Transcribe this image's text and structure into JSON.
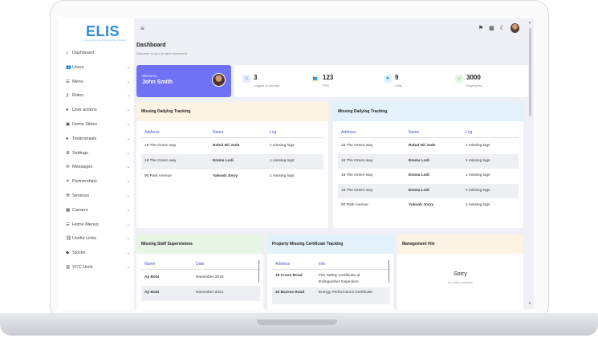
{
  "app": {
    "logo": "ELIS",
    "logo_sub": "Emergency Lighting Inspection System"
  },
  "sidebar": {
    "items": [
      {
        "label": "Dashboard",
        "icon": "home-icon",
        "glyph": "⌂",
        "chev": ""
      },
      {
        "label": "Users",
        "icon": "users-icon",
        "glyph": "👥",
        "chev": "⌄"
      },
      {
        "label": "Menu",
        "icon": "menu-icon",
        "glyph": "☰",
        "chev": "⌄"
      },
      {
        "label": "Roles",
        "icon": "key-icon",
        "glyph": "⚷",
        "chev": "⌄"
      },
      {
        "label": "User actions",
        "icon": "user-icon",
        "glyph": "●",
        "chev": "⌄"
      },
      {
        "label": "Home Slides",
        "icon": "image-icon",
        "glyph": "▣",
        "chev": "⌄"
      },
      {
        "label": "Testimonials",
        "icon": "comment-icon",
        "glyph": "●",
        "chev": "⌄"
      },
      {
        "label": "Settings",
        "icon": "gear-icon",
        "glyph": "⚙",
        "chev": "⌄"
      },
      {
        "label": "Messages",
        "icon": "envelope-icon",
        "glyph": "✉",
        "chev": "⌄"
      },
      {
        "label": "Partnerships",
        "icon": "handshake-icon",
        "glyph": "✶",
        "chev": "⌄"
      },
      {
        "label": "Services",
        "icon": "tools-icon",
        "glyph": "⚒",
        "chev": "⌄"
      },
      {
        "label": "Careers",
        "icon": "building-icon",
        "glyph": "▦",
        "chev": "⌄"
      },
      {
        "label": "Home Menus",
        "icon": "list-icon",
        "glyph": "☰",
        "chev": "⌄"
      },
      {
        "label": "Useful Links",
        "icon": "link-icon",
        "glyph": "⛓",
        "chev": "⌄"
      },
      {
        "label": "Stocks",
        "icon": "cube-icon",
        "glyph": "◆",
        "chev": "⌄"
      },
      {
        "label": "YCC Units",
        "icon": "units-icon",
        "glyph": "▥",
        "chev": "⌄"
      }
    ]
  },
  "topbar": {
    "hamburger": "≡",
    "icons": [
      "flag-icon",
      "grid-icon",
      "moon-icon"
    ]
  },
  "page": {
    "title": "Dashboard",
    "subtitle": "Welcome to your project dashboard"
  },
  "welcome": {
    "greeting": "Welcome,",
    "name": "John Smith"
  },
  "stats": [
    {
      "value": "3",
      "label": "Logged in devices",
      "icon": "monitor-icon",
      "glyph": "▭",
      "color": "#4a6cf7",
      "bg": "#e6ebff"
    },
    {
      "value": "123",
      "label": "FPS",
      "icon": "users-icon",
      "glyph": "👥",
      "color": "#e0a21b",
      "bg": "#fff3dc"
    },
    {
      "value": "9",
      "label": "Units",
      "icon": "star-icon",
      "glyph": "✱",
      "color": "#2aa4d8",
      "bg": "#dff2fb"
    },
    {
      "value": "3000",
      "label": "Employees",
      "icon": "smile-icon",
      "glyph": "☺",
      "color": "#3bb54a",
      "bg": "#e3f6e5"
    }
  ],
  "card1": {
    "title": "Missing Dailylog Tracking",
    "header_bg": "#fdf3e2",
    "columns": [
      "Address",
      "Name",
      "Log"
    ],
    "rows": [
      [
        "18 The Green way",
        "Rahul Nil Jude",
        "1 missing logs"
      ],
      [
        "18 The Green way",
        "Emma Lodi",
        "1 missing logs"
      ],
      [
        "90 Park Avenue",
        "Yakoob Joryy",
        "1 missing logs"
      ]
    ]
  },
  "card2": {
    "title": "Missing Dailylog Tracking",
    "header_bg": "#e3f2fa",
    "columns": [
      "Address",
      "Name",
      "Log"
    ],
    "rows": [
      [
        "18 The Green way",
        "Rahul Nil Jude",
        "1 missing logs"
      ],
      [
        "18 The Green way",
        "Emma Lodi",
        "1 missing logs"
      ],
      [
        "18 The Green way",
        "Emma Lodi",
        "1 missing logs"
      ],
      [
        "18 The Green way",
        "Emma Lodi",
        "1 missing logs"
      ],
      [
        "90 Park Avenue",
        "Yakoob Joryy",
        "1 missing logs"
      ]
    ]
  },
  "card3": {
    "title": "Missing Staff Supervisions",
    "header_bg": "#e8f6e6",
    "columns": [
      "Name",
      "Date"
    ],
    "rows": [
      [
        "Aji Bobi",
        "November-2019"
      ],
      [
        "Aji Bobi",
        "November-2021"
      ]
    ]
  },
  "card4": {
    "title": "Property Missing Certificate Tracking",
    "header_bg": "#e3f2fa",
    "columns": [
      "Address",
      "Info"
    ],
    "rows": [
      [
        "19 Cross Road",
        "Fire Safety Certificate of",
        "Extinguisher Inspection"
      ],
      [
        "20 Barnes Road",
        "Energy Performance Certificate",
        ""
      ]
    ]
  },
  "card5": {
    "title": "Management File",
    "header_bg": "#fdf3e2",
    "empty_title": "Sorry",
    "empty_sub": "No data available"
  }
}
